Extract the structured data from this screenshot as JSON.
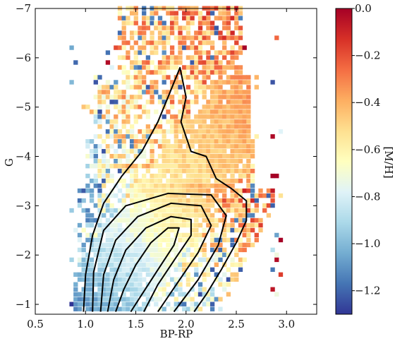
{
  "chart_data": {
    "type": "heatmap",
    "xlabel": "BP-RP",
    "ylabel": "G",
    "xlim": [
      0.5,
      3.3
    ],
    "ylim": [
      -0.8,
      -7.0
    ],
    "y_inverted": true,
    "xticks": [
      "0.5",
      "1.0",
      "1.5",
      "2.0",
      "2.5",
      "3.0"
    ],
    "xtick_values": [
      0.5,
      1.0,
      1.5,
      2.0,
      2.5,
      3.0
    ],
    "yticks": [
      "−1",
      "−2",
      "−3",
      "−4",
      "−5",
      "−6",
      "−7"
    ],
    "ytick_values": [
      -1,
      -2,
      -3,
      -4,
      -5,
      -6,
      -7
    ],
    "colorbar": {
      "label": "[M/H]",
      "range": [
        -1.3,
        0.0
      ],
      "colormap": "RdYlBu_r",
      "ticks": [
        "−1.2",
        "−1.0",
        "−0.8",
        "−0.6",
        "−0.4",
        "−0.2",
        "0.0"
      ],
      "tick_values": [
        -1.2,
        -1.0,
        -0.8,
        -0.6,
        -0.4,
        -0.2,
        0.0
      ],
      "colors": [
        "#313695",
        "#4575b4",
        "#74add1",
        "#abd9e9",
        "#e0f3f8",
        "#ffffbf",
        "#fee090",
        "#fdae61",
        "#f46d43",
        "#d73027",
        "#a50026"
      ]
    },
    "heatmap_bins": {
      "dx": 0.04,
      "dy": 0.1
    },
    "metallicity_field": {
      "description_points": [
        {
          "x": 1.3,
          "y": -1.2,
          "mh": -0.95
        },
        {
          "x": 1.6,
          "y": -2.0,
          "mh": -0.85
        },
        {
          "x": 2.0,
          "y": -2.8,
          "mh": -0.62
        },
        {
          "x": 2.2,
          "y": -4.5,
          "mh": -0.45
        }
      ]
    },
    "contours": [
      [
        [
          1.3,
          -0.85
        ],
        [
          1.38,
          -1.3
        ],
        [
          1.5,
          -1.8
        ],
        [
          1.65,
          -2.25
        ],
        [
          1.82,
          -2.55
        ],
        [
          1.93,
          -2.55
        ],
        [
          1.88,
          -2.2
        ],
        [
          1.72,
          -1.7
        ],
        [
          1.56,
          -1.2
        ],
        [
          1.45,
          -0.85
        ]
      ],
      [
        [
          1.22,
          -0.85
        ],
        [
          1.28,
          -1.5
        ],
        [
          1.4,
          -2.1
        ],
        [
          1.6,
          -2.55
        ],
        [
          1.85,
          -2.78
        ],
        [
          2.05,
          -2.72
        ],
        [
          2.05,
          -2.4
        ],
        [
          1.9,
          -1.95
        ],
        [
          1.72,
          -1.4
        ],
        [
          1.58,
          -0.85
        ]
      ],
      [
        [
          1.15,
          -0.85
        ],
        [
          1.18,
          -1.6
        ],
        [
          1.3,
          -2.3
        ],
        [
          1.52,
          -2.78
        ],
        [
          1.85,
          -3.05
        ],
        [
          2.15,
          -3.0
        ],
        [
          2.25,
          -2.6
        ],
        [
          2.12,
          -2.05
        ],
        [
          1.92,
          -1.45
        ],
        [
          1.72,
          -0.85
        ]
      ],
      [
        [
          1.07,
          -0.85
        ],
        [
          1.08,
          -1.65
        ],
        [
          1.18,
          -2.5
        ],
        [
          1.4,
          -3.0
        ],
        [
          1.82,
          -3.25
        ],
        [
          2.25,
          -3.22
        ],
        [
          2.4,
          -2.8
        ],
        [
          2.32,
          -2.2
        ],
        [
          2.12,
          -1.5
        ],
        [
          1.88,
          -0.85
        ]
      ],
      [
        [
          0.98,
          -0.85
        ],
        [
          1.0,
          -1.6
        ],
        [
          1.07,
          -2.4
        ],
        [
          1.18,
          -3.05
        ],
        [
          1.36,
          -3.6
        ],
        [
          1.56,
          -4.1
        ],
        [
          1.72,
          -4.7
        ],
        [
          1.84,
          -5.3
        ],
        [
          1.94,
          -5.8
        ],
        [
          2.0,
          -5.2
        ],
        [
          1.95,
          -4.7
        ],
        [
          2.05,
          -4.1
        ],
        [
          2.2,
          -4.0
        ],
        [
          2.3,
          -3.55
        ],
        [
          2.45,
          -3.35
        ],
        [
          2.6,
          -3.1
        ],
        [
          2.6,
          -2.7
        ],
        [
          2.5,
          -2.25
        ],
        [
          2.35,
          -1.7
        ],
        [
          2.2,
          -1.2
        ],
        [
          2.08,
          -0.85
        ]
      ]
    ]
  }
}
